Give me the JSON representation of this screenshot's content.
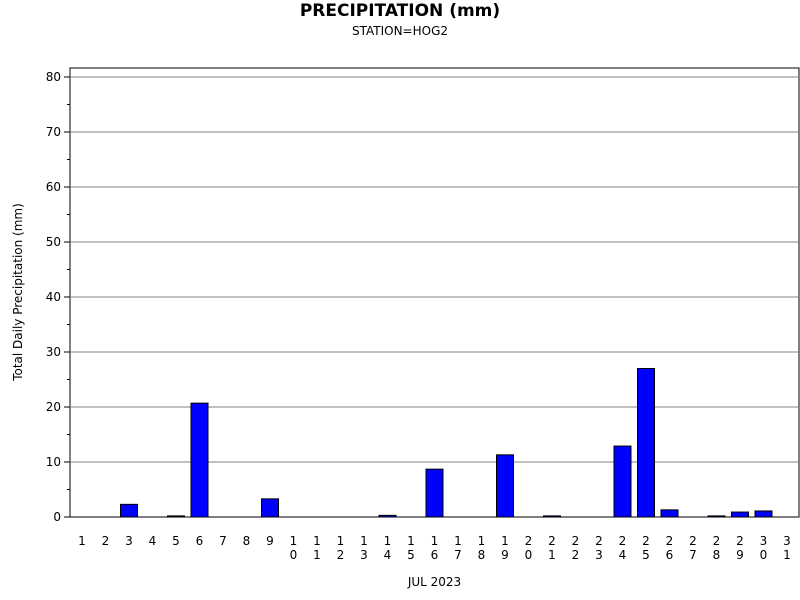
{
  "chart_data": {
    "type": "bar",
    "title": "PRECIPITATION (mm)",
    "subtitle": "STATION=HOG2",
    "ylabel": "Total Daily Precipitation (mm)",
    "xlabel": "JUL 2023",
    "categories": [
      "1",
      "2",
      "3",
      "4",
      "5",
      "6",
      "7",
      "8",
      "9",
      "10",
      "11",
      "12",
      "13",
      "14",
      "15",
      "16",
      "17",
      "18",
      "19",
      "20",
      "21",
      "22",
      "23",
      "24",
      "25",
      "26",
      "27",
      "28",
      "29",
      "30",
      "31"
    ],
    "values": [
      0,
      0,
      2.3,
      0,
      0.2,
      20.7,
      0,
      0,
      3.3,
      0,
      0,
      0,
      0,
      0.3,
      0,
      8.7,
      0,
      0,
      11.3,
      0,
      0.2,
      0,
      0,
      12.9,
      27.0,
      1.3,
      0,
      0.2,
      0.9,
      1.1,
      0
    ],
    "ylim": [
      0,
      80
    ],
    "yticks": [
      0,
      10,
      20,
      30,
      40,
      50,
      60,
      70,
      80
    ],
    "grid": true,
    "bar_color": "#0000ff",
    "bar_edge_color": "#000000"
  }
}
